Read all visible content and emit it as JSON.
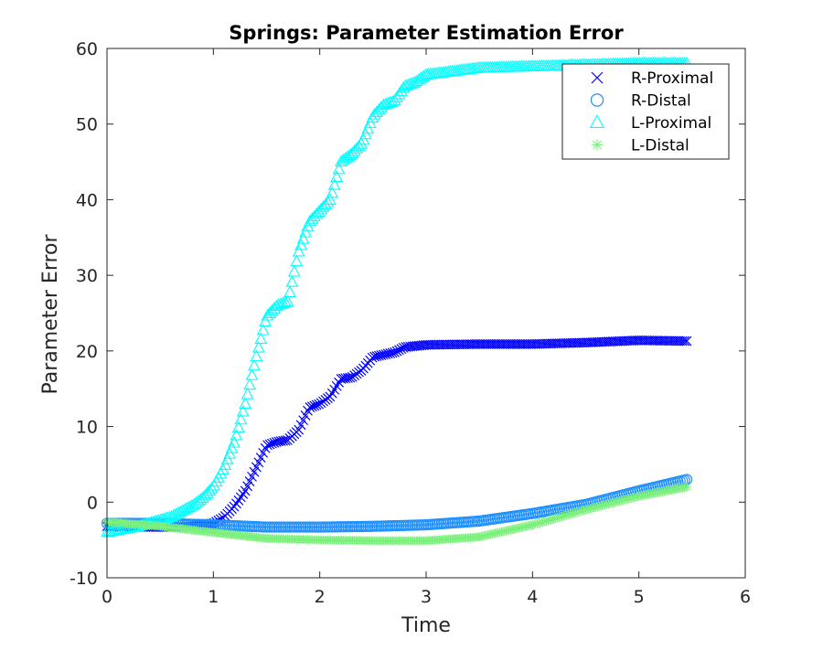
{
  "chart_data": {
    "type": "scatter",
    "title": "Springs: Parameter Estimation Error",
    "xlabel": "Time",
    "ylabel": "Parameter Error",
    "xlim": [
      0,
      6
    ],
    "ylim": [
      -10,
      60
    ],
    "xticks": [
      0,
      1,
      2,
      3,
      4,
      5,
      6
    ],
    "yticks": [
      -10,
      0,
      10,
      20,
      30,
      40,
      50,
      60
    ],
    "grid": false,
    "legend_position": "top-right",
    "series": [
      {
        "name": "R-Proximal",
        "marker": "x",
        "color": "#0000ff",
        "points": [
          [
            0,
            -3.2
          ],
          [
            0.5,
            -3.3
          ],
          [
            0.8,
            -3.2
          ],
          [
            1.0,
            -2.8
          ],
          [
            1.1,
            -2.0
          ],
          [
            1.2,
            -0.5
          ],
          [
            1.3,
            1.5
          ],
          [
            1.4,
            4.5
          ],
          [
            1.5,
            7.5
          ],
          [
            1.6,
            8.0
          ],
          [
            1.7,
            8.2
          ],
          [
            1.8,
            9.5
          ],
          [
            1.9,
            12.5
          ],
          [
            2.0,
            13.0
          ],
          [
            2.1,
            14.0
          ],
          [
            2.2,
            16.3
          ],
          [
            2.3,
            16.5
          ],
          [
            2.4,
            17.5
          ],
          [
            2.5,
            19.2
          ],
          [
            2.6,
            19.5
          ],
          [
            2.7,
            19.8
          ],
          [
            2.8,
            20.5
          ],
          [
            3.0,
            20.8
          ],
          [
            3.5,
            20.9
          ],
          [
            4.0,
            20.9
          ],
          [
            4.5,
            21.1
          ],
          [
            5.0,
            21.4
          ],
          [
            5.45,
            21.3
          ]
        ]
      },
      {
        "name": "R-Distal",
        "marker": "o",
        "color": "#1e90ff",
        "points": [
          [
            0,
            -2.8
          ],
          [
            0.5,
            -2.8
          ],
          [
            1.0,
            -3.0
          ],
          [
            1.5,
            -3.3
          ],
          [
            2.0,
            -3.3
          ],
          [
            2.5,
            -3.2
          ],
          [
            3.0,
            -3.0
          ],
          [
            3.5,
            -2.5
          ],
          [
            4.0,
            -1.5
          ],
          [
            4.5,
            -0.3
          ],
          [
            5.0,
            1.5
          ],
          [
            5.45,
            3.0
          ]
        ]
      },
      {
        "name": "L-Proximal",
        "marker": "triangle",
        "color": "#00ffff",
        "points": [
          [
            0,
            -4.0
          ],
          [
            0.3,
            -3.2
          ],
          [
            0.6,
            -2.0
          ],
          [
            0.8,
            -0.5
          ],
          [
            0.9,
            0.5
          ],
          [
            1.0,
            2.0
          ],
          [
            1.1,
            4.5
          ],
          [
            1.2,
            8.0
          ],
          [
            1.3,
            13.0
          ],
          [
            1.4,
            19.0
          ],
          [
            1.5,
            24.5
          ],
          [
            1.6,
            26.0
          ],
          [
            1.7,
            26.5
          ],
          [
            1.8,
            33.0
          ],
          [
            1.9,
            37.0
          ],
          [
            2.0,
            38.5
          ],
          [
            2.1,
            40.0
          ],
          [
            2.2,
            45.0
          ],
          [
            2.3,
            46.0
          ],
          [
            2.4,
            47.5
          ],
          [
            2.5,
            51.0
          ],
          [
            2.6,
            52.5
          ],
          [
            2.7,
            53.0
          ],
          [
            2.8,
            55.0
          ],
          [
            2.9,
            55.5
          ],
          [
            3.0,
            56.5
          ],
          [
            3.5,
            57.4
          ],
          [
            4.0,
            57.6
          ],
          [
            4.5,
            57.8
          ],
          [
            5.0,
            58.0
          ],
          [
            5.45,
            58.0
          ]
        ]
      },
      {
        "name": "L-Distal",
        "marker": "*",
        "color": "#7cf07c",
        "points": [
          [
            0,
            -2.6
          ],
          [
            0.5,
            -3.2
          ],
          [
            1.0,
            -4.0
          ],
          [
            1.5,
            -4.8
          ],
          [
            2.0,
            -5.0
          ],
          [
            2.5,
            -5.1
          ],
          [
            3.0,
            -5.1
          ],
          [
            3.5,
            -4.6
          ],
          [
            4.0,
            -3.0
          ],
          [
            4.5,
            -1.0
          ],
          [
            5.0,
            0.8
          ],
          [
            5.45,
            2.0
          ]
        ]
      }
    ]
  }
}
